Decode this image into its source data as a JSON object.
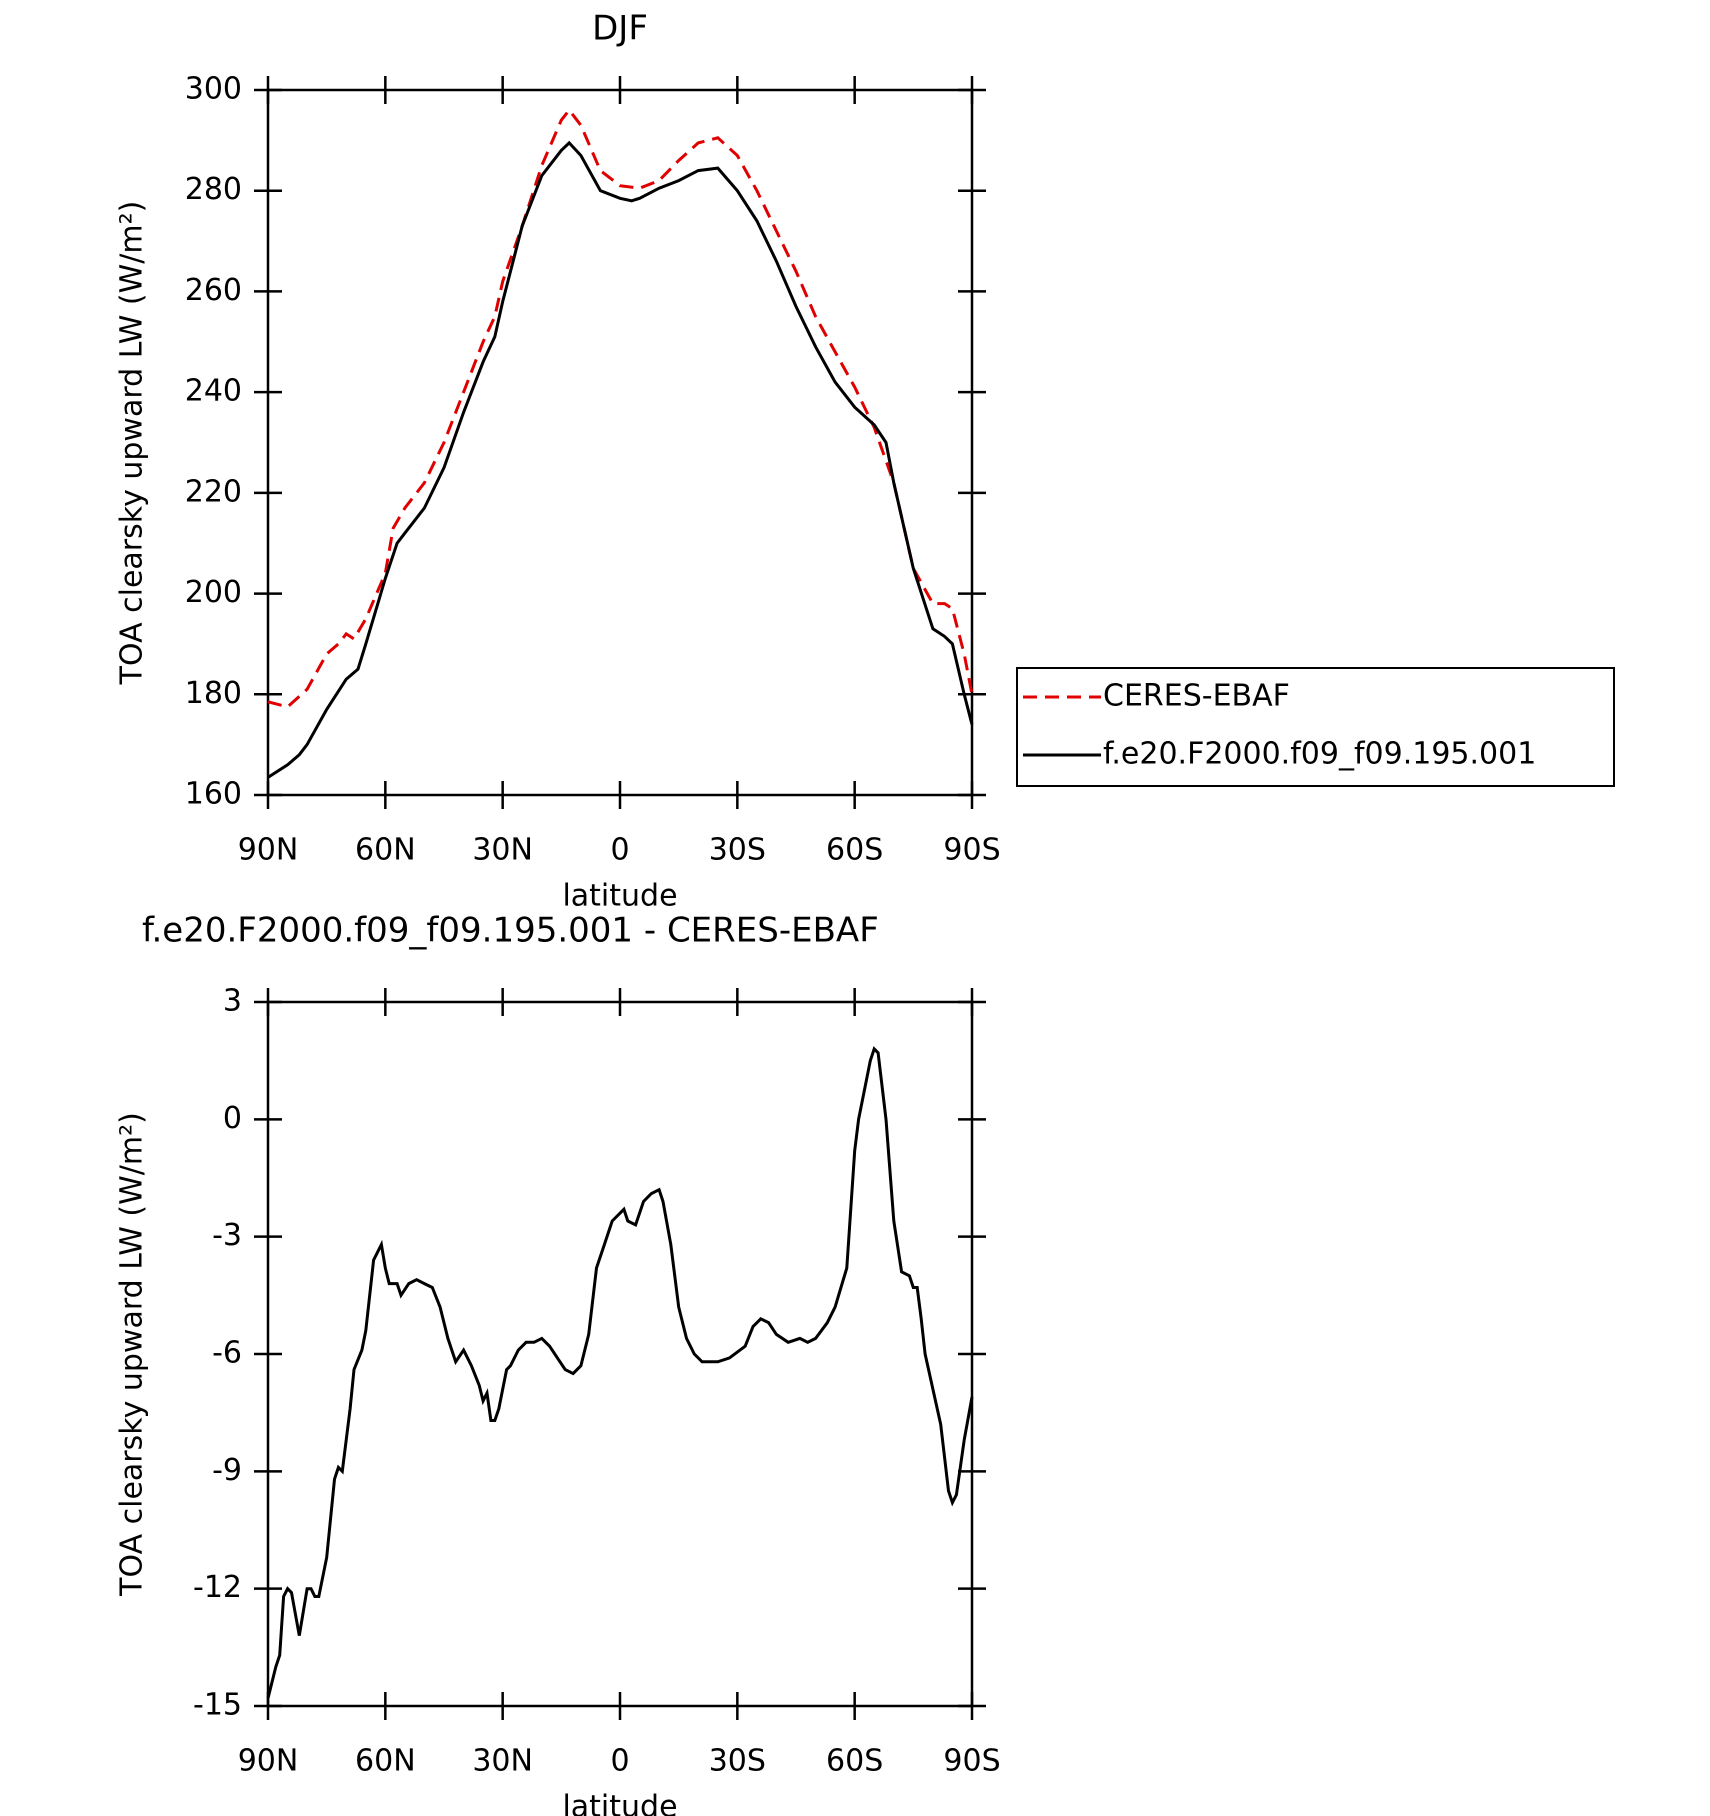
{
  "chart_data": [
    {
      "type": "line",
      "title": "DJF",
      "xlabel": "latitude",
      "ylabel": "TOA clearsky upward LW (W/m²)",
      "xlim": [
        90,
        -90
      ],
      "xticks": [
        {
          "value": 90,
          "label": "90N"
        },
        {
          "value": 60,
          "label": "60N"
        },
        {
          "value": 30,
          "label": "30N"
        },
        0,
        {
          "value": -30,
          "label": "30S"
        },
        {
          "value": -60,
          "label": "60S"
        },
        {
          "value": -90,
          "label": "90S"
        }
      ],
      "ylim": [
        160,
        300
      ],
      "yticks": [
        160,
        180,
        200,
        220,
        240,
        260,
        280,
        300
      ],
      "legend": "right",
      "series": [
        {
          "name": "CERES-EBAF",
          "color": "#e00000",
          "dashed": true,
          "x": [
            90,
            85,
            80,
            75,
            72,
            70,
            68,
            65,
            60,
            58,
            55,
            50,
            45,
            40,
            35,
            32,
            30,
            25,
            20,
            15,
            13,
            10,
            5,
            0,
            -5,
            -10,
            -15,
            -20,
            -25,
            -30,
            -35,
            -40,
            -45,
            -50,
            -55,
            -60,
            -65,
            -70,
            -75,
            -80,
            -83,
            -85,
            -88,
            -90
          ],
          "values": [
            178.5,
            177.5,
            181,
            188,
            190,
            192,
            191,
            195,
            204,
            213,
            217,
            222,
            230,
            240,
            250,
            255,
            262,
            273,
            285,
            294,
            296,
            293,
            284,
            281,
            280.5,
            282,
            286,
            289.5,
            290.5,
            287,
            280,
            272,
            264,
            255,
            248,
            241,
            233,
            222,
            205,
            198,
            198,
            197,
            188,
            180
          ]
        },
        {
          "name": "f.e20.F2000.f09_f09.195.001",
          "color": "#000000",
          "dashed": false,
          "x": [
            90,
            85,
            82,
            80,
            75,
            70,
            67,
            65,
            60,
            57,
            55,
            50,
            45,
            40,
            35,
            32,
            30,
            25,
            20,
            15,
            13,
            10,
            5,
            0,
            -3,
            -5,
            -10,
            -15,
            -20,
            -25,
            -30,
            -35,
            -40,
            -45,
            -50,
            -55,
            -60,
            -65,
            -68,
            -70,
            -75,
            -80,
            -83,
            -85,
            -88,
            -90
          ],
          "values": [
            163.5,
            166,
            168,
            170,
            177,
            183,
            185,
            190,
            203,
            210,
            212,
            217,
            225,
            236,
            246,
            251,
            258,
            273,
            283,
            288,
            289.5,
            287,
            280,
            278.5,
            278,
            278.5,
            280.5,
            282,
            284,
            284.5,
            280,
            274,
            266,
            257,
            249,
            242,
            237,
            233.5,
            230,
            222,
            205,
            193,
            191.5,
            190,
            180,
            174
          ]
        }
      ]
    },
    {
      "type": "line",
      "title": "f.e20.F2000.f09_f09.195.001 - CERES-EBAF",
      "xlabel": "latitude",
      "ylabel": "TOA clearsky upward LW (W/m²)",
      "xlim": [
        90,
        -90
      ],
      "xticks": [
        {
          "value": 90,
          "label": "90N"
        },
        {
          "value": 60,
          "label": "60N"
        },
        {
          "value": 30,
          "label": "30N"
        },
        0,
        {
          "value": -30,
          "label": "30S"
        },
        {
          "value": -60,
          "label": "60S"
        },
        {
          "value": -90,
          "label": "90S"
        }
      ],
      "ylim": [
        -15,
        3
      ],
      "yticks": [
        -15,
        -12,
        -9,
        -6,
        -3,
        0,
        3
      ],
      "color": "#000000",
      "x": [
        90,
        88,
        87,
        86,
        85,
        84,
        82,
        80,
        79,
        78,
        77,
        75,
        73,
        72,
        71,
        69,
        68,
        66,
        65,
        63,
        61,
        60,
        59,
        57,
        56,
        54,
        52,
        50,
        48,
        46,
        44,
        42,
        40,
        38,
        36,
        35,
        34,
        33,
        32,
        31,
        29,
        28,
        26,
        24,
        22,
        20,
        18,
        16,
        14,
        12,
        10,
        8,
        6,
        4,
        2,
        0,
        -1,
        -2,
        -4,
        -6,
        -8,
        -10,
        -11,
        -13,
        -15,
        -17,
        -19,
        -21,
        -25,
        -28,
        -32,
        -34,
        -36,
        -38,
        -40,
        -43,
        -46,
        -48,
        -50,
        -53,
        -55,
        -58,
        -60,
        -61,
        -64,
        -65,
        -66,
        -68,
        -70,
        -72,
        -74,
        -75,
        -76,
        -77,
        -78,
        -82,
        -84,
        -85,
        -86,
        -88,
        -90
      ],
      "values": [
        -14.8,
        -14,
        -13.7,
        -12.2,
        -12,
        -12.1,
        -13.2,
        -12,
        -12,
        -12.2,
        -12.2,
        -11.2,
        -9.2,
        -8.9,
        -9,
        -7.4,
        -6.4,
        -5.9,
        -5.4,
        -3.6,
        -3.2,
        -3.8,
        -4.2,
        -4.2,
        -4.5,
        -4.2,
        -4.1,
        -4.2,
        -4.3,
        -4.8,
        -5.6,
        -6.2,
        -5.9,
        -6.3,
        -6.8,
        -7.2,
        -7,
        -7.7,
        -7.7,
        -7.4,
        -6.4,
        -6.3,
        -5.9,
        -5.7,
        -5.7,
        -5.6,
        -5.8,
        -6.1,
        -6.4,
        -6.5,
        -6.3,
        -5.5,
        -3.8,
        -3.2,
        -2.6,
        -2.4,
        -2.3,
        -2.6,
        -2.7,
        -2.1,
        -1.9,
        -1.8,
        -2.1,
        -3.2,
        -4.8,
        -5.6,
        -6,
        -6.2,
        -6.2,
        -6.1,
        -5.8,
        -5.3,
        -5.1,
        -5.2,
        -5.5,
        -5.7,
        -5.6,
        -5.7,
        -5.6,
        -5.2,
        -4.8,
        -3.8,
        -0.8,
        0,
        1.5,
        1.8,
        1.7,
        0,
        -2.6,
        -3.9,
        -4,
        -4.3,
        -4.3,
        -5.1,
        -6,
        -7.8,
        -9.5,
        -9.8,
        -9.6,
        -8.2,
        -7.1
      ]
    }
  ]
}
